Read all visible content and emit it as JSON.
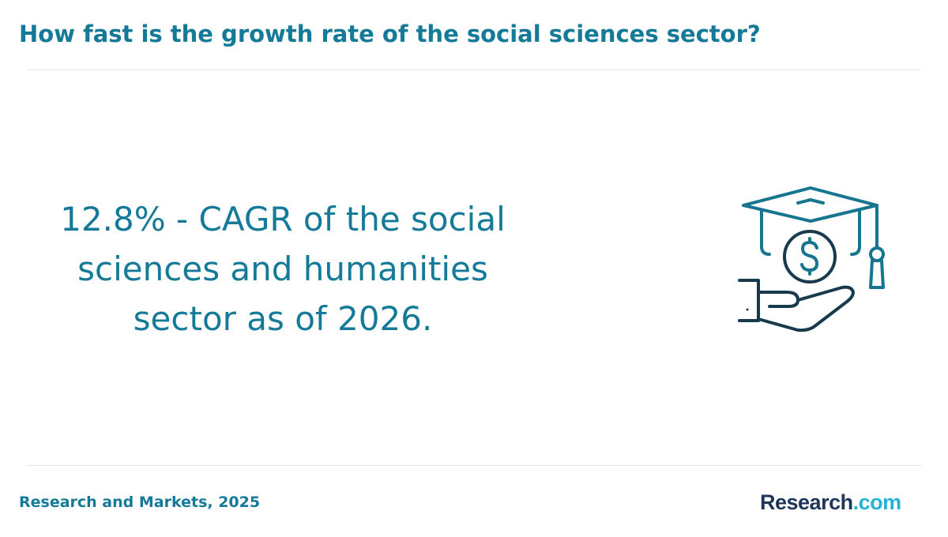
{
  "header": {
    "title": "How fast is the growth rate of the social sciences sector?"
  },
  "main": {
    "stat_text": "12.8% - CAGR of the social sciences and humanities sector as of 2026.",
    "illustration_icon": "graduation-cap-coin-hand-icon"
  },
  "footer": {
    "source": "Research and Markets, 2025",
    "logo": {
      "main": "Research",
      "suffix": ".com"
    }
  },
  "colors": {
    "accent": "#157a98",
    "icon_teal": "#17758f",
    "icon_dark": "#173a4d",
    "logo_navy": "#1d3557",
    "logo_cyan": "#24b3d6",
    "divider": "#e3e6e8"
  }
}
